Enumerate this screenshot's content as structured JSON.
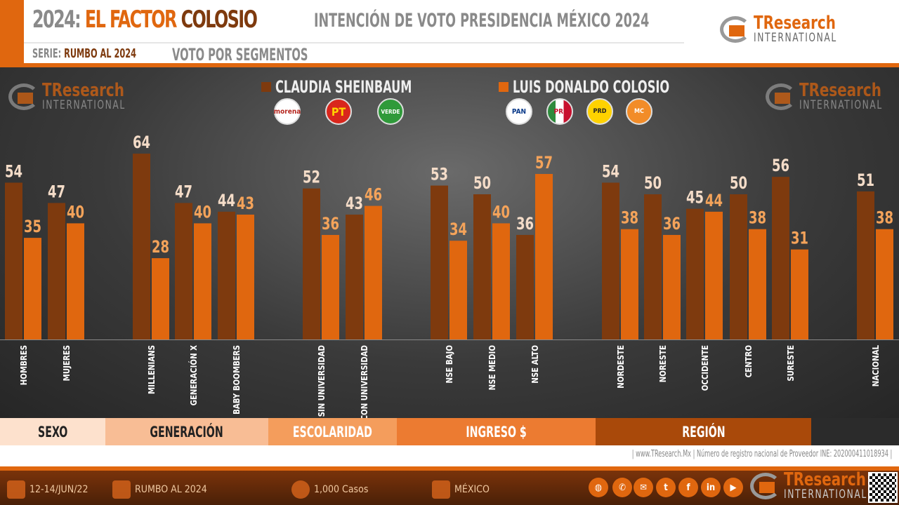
{
  "header": {
    "year": "2024:",
    "title_a": "EL FACTOR",
    "title_b": "COLOSIO",
    "subtitle": "INTENCIÓN DE VOTO PRESIDENCIA MÉXICO 2024",
    "serie_label": "SERIE:",
    "serie_value": "RUMBO AL 2024",
    "section": "VOTO POR SEGMENTOS"
  },
  "logo": {
    "a": "TResearch",
    "b": "INTERNATIONAL"
  },
  "colors": {
    "sheinbaum": "#7e3a0e",
    "colosio": "#e0670f",
    "accent": "#e0670f"
  },
  "parties": {
    "sheinbaum": [
      "morena",
      "PT",
      "VERDE"
    ],
    "colosio": [
      "PAN",
      "PRI",
      "PRD",
      "MC"
    ]
  },
  "chart_data": {
    "type": "bar",
    "ylim": [
      0,
      70
    ],
    "grid": false,
    "legend": "top",
    "categories": [
      "HOMBRES",
      "MUJERES",
      "MILLENIANS",
      "GENERACIÓN X",
      "BABY BOOMBERS",
      "SIN UNIVERSIDAD",
      "CON UNIVERSIDAD",
      "NSE BAJO",
      "NSE MEDIO",
      "NSE ALTO",
      "NORDESTE",
      "NORESTE",
      "OCCIDENTE",
      "CENTRO",
      "SURESTE",
      "NACIONAL"
    ],
    "series": [
      {
        "name": "CLAUDIA SHEINBAUM",
        "values": [
          54,
          47,
          64,
          47,
          44,
          52,
          43,
          53,
          50,
          36,
          54,
          50,
          45,
          50,
          56,
          51
        ]
      },
      {
        "name": "LUIS DONALDO COLOSIO",
        "values": [
          35,
          40,
          28,
          40,
          43,
          36,
          46,
          34,
          40,
          57,
          38,
          36,
          44,
          38,
          31,
          38
        ]
      }
    ]
  },
  "segments": [
    {
      "label": "SEXO",
      "color": "#fde1cd",
      "text": "#222"
    },
    {
      "label": "GENERACIÓN",
      "color": "#f8bd95",
      "text": "#222"
    },
    {
      "label": "ESCOLARIDAD",
      "color": "#f49d5c",
      "text": "#fff"
    },
    {
      "label": "INGRESO $",
      "color": "#ec7b31",
      "text": "#fff"
    },
    {
      "label": "REGIÓN",
      "color": "#a9490a",
      "text": "#fff"
    }
  ],
  "registro": "| www.TResearch.Mx | Número de registro nacional de Proveedor INE: 202000411018934 |",
  "footer": {
    "date": "12-14/JUN/22",
    "serie": "RUMBO AL 2024",
    "cases": "1,000 Casos",
    "place": "MÉXICO"
  },
  "social": [
    "web",
    "phone",
    "mail",
    "twitter",
    "facebook",
    "linkedin",
    "youtube"
  ]
}
